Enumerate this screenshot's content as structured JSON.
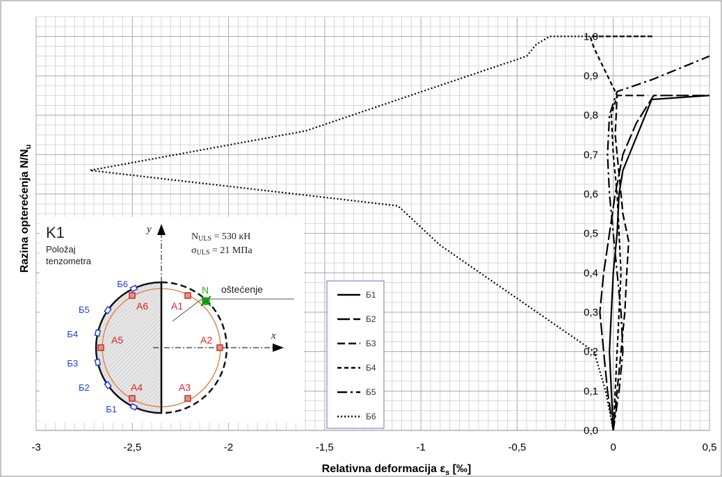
{
  "chart_data": {
    "type": "line",
    "xlabel": "Relativna deformacija ε",
    "xlabel_sub": "s",
    "xlabel_unit": " [‰]",
    "ylabel": "Razina opterećenja  N/N",
    "ylabel_sub": "u",
    "xlim": [
      -3,
      0.5
    ],
    "ylim": [
      0,
      1.05
    ],
    "x_ticks": [
      "-3",
      "-2,5",
      "-2",
      "-1,5",
      "-1",
      "-0,5",
      "0",
      "0,5"
    ],
    "y_ticks": [
      "0,0",
      "0,1",
      "0,2",
      "0,3",
      "0,4",
      "0,5",
      "0,6",
      "0,7",
      "0,8",
      "0,9",
      "1,0"
    ],
    "grid": true,
    "legend_position": "bottom-center",
    "series": [
      {
        "name": "Б1",
        "dash": "solid",
        "points": [
          [
            0,
            0
          ],
          [
            -0.01,
            0.1
          ],
          [
            -0.02,
            0.2
          ],
          [
            -0.01,
            0.3
          ],
          [
            0,
            0.4
          ],
          [
            0.02,
            0.5
          ],
          [
            0.03,
            0.6
          ],
          [
            0.05,
            0.66
          ],
          [
            0.2,
            0.84
          ],
          [
            0.5,
            0.85
          ]
        ]
      },
      {
        "name": "Б2",
        "dash": "long",
        "points": [
          [
            0,
            0
          ],
          [
            -0.03,
            0.1
          ],
          [
            -0.05,
            0.2
          ],
          [
            -0.07,
            0.3
          ],
          [
            -0.05,
            0.4
          ],
          [
            -0.02,
            0.5
          ],
          [
            0.01,
            0.6
          ],
          [
            0.05,
            0.7
          ],
          [
            0.12,
            0.78
          ],
          [
            0.21,
            0.85
          ],
          [
            0.5,
            0.85
          ]
        ]
      },
      {
        "name": "Б3",
        "dash": "dash",
        "points": [
          [
            0,
            0
          ],
          [
            0.02,
            0.1
          ],
          [
            0.04,
            0.2
          ],
          [
            0.06,
            0.3
          ],
          [
            0.07,
            0.4
          ],
          [
            0.08,
            0.48
          ],
          [
            0.05,
            0.55
          ],
          [
            0.03,
            0.65
          ],
          [
            0.01,
            0.75
          ],
          [
            0.02,
            0.85
          ],
          [
            0.1,
            0.85
          ],
          [
            0.18,
            0.85
          ]
        ]
      },
      {
        "name": "Б4",
        "dash": "short",
        "points": [
          [
            0,
            0
          ],
          [
            0.01,
            0.1
          ],
          [
            0.02,
            0.2
          ],
          [
            0.03,
            0.3
          ],
          [
            0.04,
            0.4
          ],
          [
            0.03,
            0.5
          ],
          [
            0.02,
            0.6
          ],
          [
            0,
            0.7
          ],
          [
            -0.01,
            0.8
          ],
          [
            0.02,
            0.85
          ],
          [
            -0.03,
            0.9
          ],
          [
            -0.1,
            0.97
          ],
          [
            -0.12,
            1.0
          ],
          [
            0.2,
            1.0
          ]
        ]
      },
      {
        "name": "Б5",
        "dash": "dashdot",
        "points": [
          [
            0,
            0
          ],
          [
            0.03,
            0.1
          ],
          [
            0.05,
            0.2
          ],
          [
            0.04,
            0.3
          ],
          [
            0.02,
            0.4
          ],
          [
            0,
            0.5
          ],
          [
            -0.02,
            0.6
          ],
          [
            -0.03,
            0.7
          ],
          [
            -0.02,
            0.8
          ],
          [
            0.02,
            0.86
          ],
          [
            0.2,
            0.89
          ],
          [
            0.5,
            0.95
          ]
        ]
      },
      {
        "name": "Б6",
        "dash": "dotted",
        "points": [
          [
            0,
            0
          ],
          [
            -0.04,
            0.1
          ],
          [
            -0.1,
            0.2
          ],
          [
            -0.9,
            0.47
          ],
          [
            -1.12,
            0.57
          ],
          [
            -2.72,
            0.66
          ],
          [
            -1.6,
            0.76
          ],
          [
            -0.45,
            0.95
          ],
          [
            -0.4,
            0.98
          ],
          [
            -0.33,
            1.0
          ],
          [
            0.21,
            1.0
          ]
        ]
      }
    ]
  },
  "inset": {
    "title": "K1",
    "subtitle_line1": "Položaj",
    "subtitle_line2": "tenzometra",
    "y_axis": "y",
    "x_axis": "x",
    "nuls_text": "N",
    "nuls_sub": "ULS",
    "nuls_value": " = 530 кН",
    "suls_text": "σ",
    "suls_sub": "ULS",
    "suls_value": " = 21 МПа",
    "damage_label": "oštećenje",
    "n_marker": "N",
    "gauges_b": [
      "Б1",
      "Б2",
      "Б3",
      "Б4",
      "Б5",
      "Б6"
    ],
    "gauges_a": [
      "A1",
      "A2",
      "A3",
      "A4",
      "A5",
      "A6"
    ],
    "colors": {
      "b_gauge": "#1f3fdc",
      "a_gauge": "#e02020",
      "ring": "#e07b3a",
      "n_marker": "#22b022"
    }
  }
}
